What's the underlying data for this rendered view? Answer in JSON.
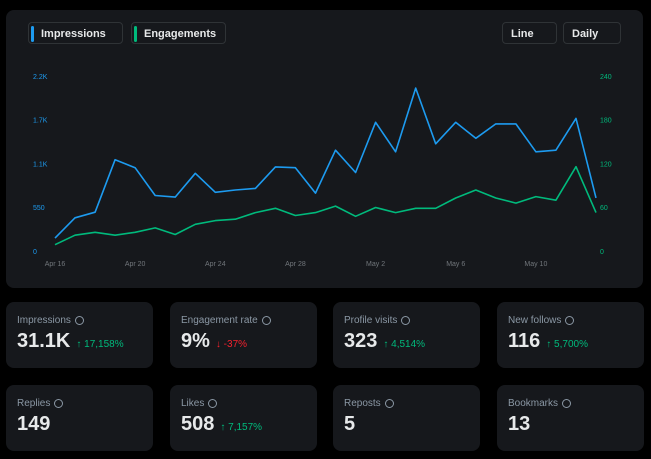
{
  "chart_data": {
    "type": "line",
    "categories": [
      "Apr 16",
      null,
      null,
      null,
      "Apr 20",
      null,
      null,
      null,
      "Apr 24",
      null,
      null,
      null,
      "Apr 28",
      null,
      null,
      null,
      "May 2",
      null,
      null,
      null,
      "May 6",
      null,
      null,
      null,
      "May 10",
      null,
      null,
      null
    ],
    "series": [
      {
        "name": "Impressions",
        "color": "#1d9bf0",
        "values": [
          175,
          430,
          500,
          1160,
          1060,
          710,
          690,
          990,
          750,
          780,
          800,
          1070,
          1060,
          740,
          1280,
          1000,
          1630,
          1260,
          2060,
          1360,
          1630,
          1430,
          1610,
          1610,
          1260,
          1280,
          1680,
          680
        ]
      },
      {
        "name": "Engagements",
        "color": "#00ba7c",
        "axis": "y2",
        "values": [
          10,
          23,
          27,
          23,
          27,
          33,
          24,
          38,
          43,
          45,
          54,
          60,
          50,
          54,
          63,
          49,
          61,
          54,
          60,
          60,
          74,
          85,
          74,
          67,
          76,
          71,
          117,
          54
        ]
      }
    ],
    "ylim": [
      0,
      2200
    ],
    "yticks": [
      0,
      550,
      {
        "value": 1100,
        "label": "1.1K"
      },
      {
        "value": 1650,
        "label": "1.7K"
      },
      {
        "value": 2200,
        "label": "2.2K"
      }
    ],
    "y2lim": [
      0,
      240
    ],
    "y2ticks": [
      0,
      60,
      120,
      180,
      240
    ],
    "grid": false
  },
  "controls": [
    "Line",
    "Daily"
  ],
  "cards": [
    {
      "label": "Impressions",
      "value": "31.1K",
      "change": "↑ 17,158%",
      "change_color": "#00ba7c"
    },
    {
      "label": "Engagement rate",
      "value": "9%",
      "change": "↓ -37%",
      "change_color": "#f4212e"
    },
    {
      "label": "Profile visits",
      "value": "323",
      "change": "↑ 4,514%",
      "change_color": "#00ba7c"
    },
    {
      "label": "New follows",
      "value": "116",
      "change": "↑ 5,700%",
      "change_color": "#00ba7c"
    },
    {
      "label": "Replies",
      "value": "149"
    },
    {
      "label": "Likes",
      "value": "508",
      "change": "↑ 7,157%",
      "change_color": "#00ba7c"
    },
    {
      "label": "Reposts",
      "value": "5"
    },
    {
      "label": "Bookmarks",
      "value": "13"
    }
  ]
}
